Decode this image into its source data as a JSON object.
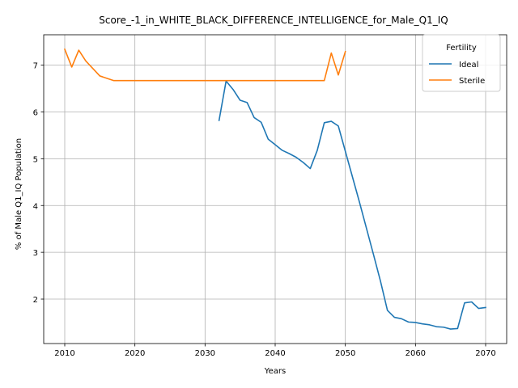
{
  "chart_data": {
    "type": "line",
    "title": "Score_-1_in_WHITE_BLACK_DIFFERENCE_INTELLIGENCE_for_Male_Q1_IQ",
    "xlabel": "Years",
    "ylabel": "% of Male Q1_IQ Population",
    "xlim": [
      2007,
      2073
    ],
    "ylim": [
      1.05,
      7.65
    ],
    "xticks": [
      2010,
      2020,
      2030,
      2040,
      2050,
      2060,
      2070
    ],
    "yticks": [
      2,
      3,
      4,
      5,
      6,
      7
    ],
    "grid": true,
    "legend": {
      "title": "Fertility",
      "placement": "top-right"
    },
    "series": [
      {
        "name": "Ideal",
        "color": "#1f77b4",
        "x": [
          2032,
          2033,
          2034,
          2035,
          2036,
          2037,
          2038,
          2039,
          2040,
          2041,
          2042,
          2043,
          2044,
          2045,
          2046,
          2047,
          2048,
          2049,
          2050,
          2051,
          2052,
          2053,
          2054,
          2055,
          2056,
          2057,
          2058,
          2059,
          2060,
          2061,
          2062,
          2063,
          2064,
          2065,
          2066,
          2067,
          2068,
          2069,
          2070
        ],
        "values": [
          5.82,
          6.66,
          6.48,
          6.25,
          6.2,
          5.88,
          5.78,
          5.42,
          5.3,
          5.18,
          5.11,
          5.03,
          4.92,
          4.79,
          5.18,
          5.77,
          5.8,
          5.7,
          5.16,
          4.62,
          4.08,
          3.52,
          2.96,
          2.39,
          1.76,
          1.61,
          1.58,
          1.51,
          1.5,
          1.47,
          1.45,
          1.41,
          1.4,
          1.36,
          1.37,
          1.92,
          1.94,
          1.8,
          1.82
        ]
      },
      {
        "name": "Sterile",
        "color": "#ff7f0e",
        "x": [
          2010,
          2011,
          2012,
          2013,
          2014,
          2015,
          2016,
          2017,
          2018,
          2019,
          2020,
          2021,
          2022,
          2023,
          2024,
          2025,
          2026,
          2027,
          2028,
          2029,
          2030,
          2031,
          2032,
          2033,
          2034,
          2035,
          2036,
          2037,
          2038,
          2039,
          2040,
          2041,
          2042,
          2043,
          2044,
          2045,
          2046,
          2047,
          2048,
          2049,
          2050
        ],
        "values": [
          7.34,
          6.96,
          7.32,
          7.09,
          6.93,
          6.77,
          6.72,
          6.67,
          6.67,
          6.67,
          6.67,
          6.67,
          6.67,
          6.67,
          6.67,
          6.67,
          6.67,
          6.67,
          6.67,
          6.67,
          6.67,
          6.67,
          6.67,
          6.67,
          6.67,
          6.67,
          6.67,
          6.67,
          6.67,
          6.67,
          6.67,
          6.67,
          6.67,
          6.67,
          6.67,
          6.67,
          6.67,
          6.67,
          7.26,
          6.79,
          7.29
        ]
      }
    ]
  }
}
